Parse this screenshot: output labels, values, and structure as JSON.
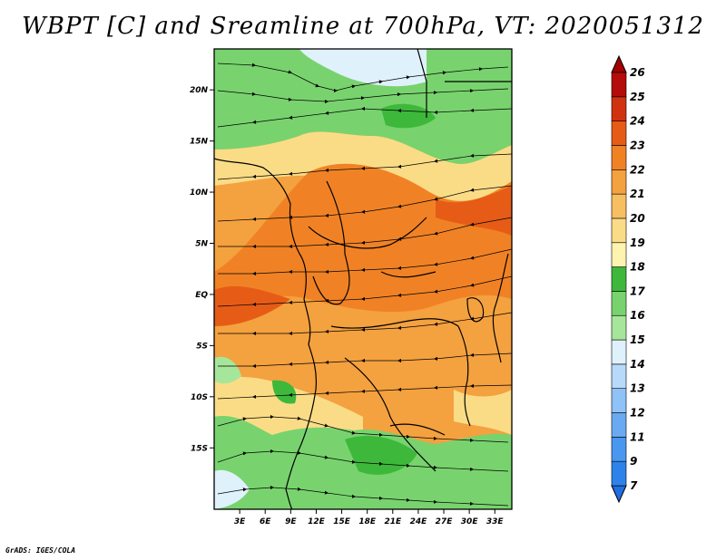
{
  "title": "WBPT [C] and Sreamline at 700hPa, VT: 2020051312",
  "credit": "GrADS: IGES/COLA",
  "map": {
    "lat_range": [
      -21,
      24
    ],
    "lon_range": [
      0,
      35
    ],
    "lat_ticks": [
      {
        "value": 20,
        "label": "20N"
      },
      {
        "value": 15,
        "label": "15N"
      },
      {
        "value": 10,
        "label": "10N"
      },
      {
        "value": 5,
        "label": "5N"
      },
      {
        "value": 0,
        "label": "EQ"
      },
      {
        "value": -5,
        "label": "5S"
      },
      {
        "value": -10,
        "label": "10S"
      },
      {
        "value": -15,
        "label": "15S"
      }
    ],
    "lon_ticks": [
      {
        "value": 3,
        "label": "3E"
      },
      {
        "value": 6,
        "label": "6E"
      },
      {
        "value": 9,
        "label": "9E"
      },
      {
        "value": 12,
        "label": "12E"
      },
      {
        "value": 15,
        "label": "15E"
      },
      {
        "value": 18,
        "label": "18E"
      },
      {
        "value": 21,
        "label": "21E"
      },
      {
        "value": 24,
        "label": "24E"
      },
      {
        "value": 27,
        "label": "27E"
      },
      {
        "value": 30,
        "label": "30E"
      },
      {
        "value": 33,
        "label": "33E"
      }
    ]
  },
  "colorbar": {
    "labels": [
      "7",
      "9",
      "11",
      "12",
      "13",
      "14",
      "15",
      "16",
      "17",
      "18",
      "19",
      "20",
      "21",
      "22",
      "23",
      "24",
      "25",
      "26"
    ],
    "colors": [
      "#1f6fe0",
      "#2f82ea",
      "#4a97f0",
      "#6aaaf2",
      "#8fc2f6",
      "#b7dafa",
      "#dff1fb",
      "#a6e69a",
      "#78d36e",
      "#3db83b",
      "#fff3b0",
      "#fbdc86",
      "#f7be62",
      "#f4a13f",
      "#f08225",
      "#e65c17",
      "#d0320f",
      "#b40b0b",
      "#a50000"
    ]
  }
}
